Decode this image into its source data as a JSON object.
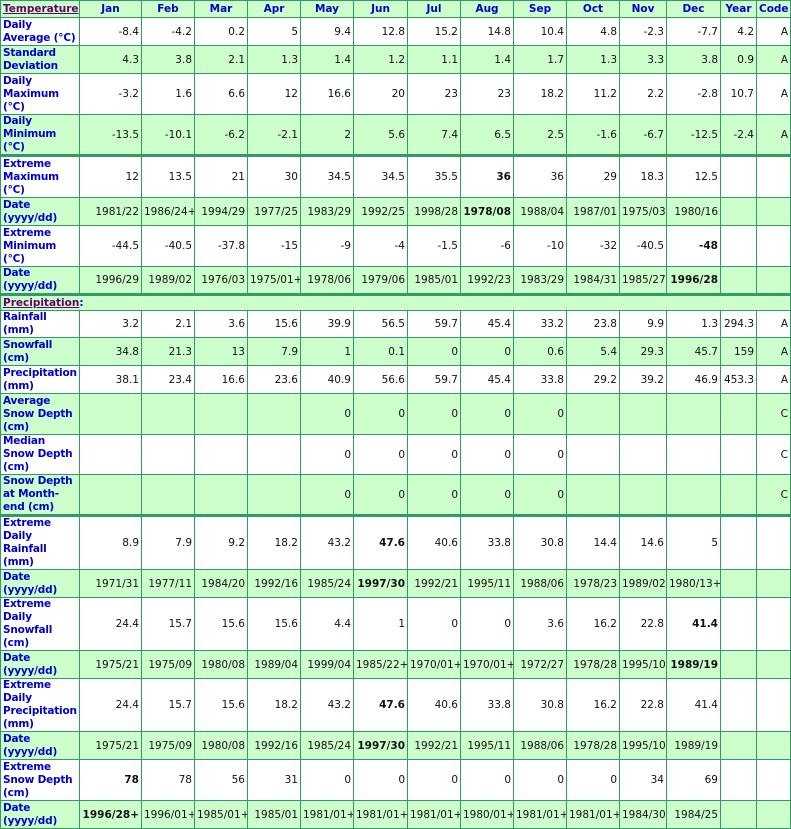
{
  "colors": {
    "green": "#ccffcc",
    "border": "#339966",
    "label": "#0000cc",
    "section": "#660066"
  },
  "header": {
    "section": "Temperature",
    "columns": [
      "Jan",
      "Feb",
      "Mar",
      "Apr",
      "May",
      "Jun",
      "Jul",
      "Aug",
      "Sep",
      "Oct",
      "Nov",
      "Dec",
      "Year",
      "Code"
    ]
  },
  "precip_section": "Precipitation",
  "temperature_rows": [
    {
      "label": "Daily Average (°C)",
      "values": [
        "-8.4",
        "-4.2",
        "0.2",
        "5",
        "9.4",
        "12.8",
        "15.2",
        "14.8",
        "10.4",
        "4.8",
        "-2.3",
        "-7.7",
        "4.2",
        "A"
      ],
      "bold": []
    },
    {
      "label": "Standard Deviation",
      "values": [
        "4.3",
        "3.8",
        "2.1",
        "1.3",
        "1.4",
        "1.2",
        "1.1",
        "1.4",
        "1.7",
        "1.3",
        "3.3",
        "3.8",
        "0.9",
        "A"
      ],
      "bold": []
    },
    {
      "label": "Daily Maximum (°C)",
      "values": [
        "-3.2",
        "1.6",
        "6.6",
        "12",
        "16.6",
        "20",
        "23",
        "23",
        "18.2",
        "11.2",
        "2.2",
        "-2.8",
        "10.7",
        "A"
      ],
      "bold": []
    },
    {
      "label": "Daily Minimum (°C)",
      "values": [
        "-13.5",
        "-10.1",
        "-6.2",
        "-2.1",
        "2",
        "5.6",
        "7.4",
        "6.5",
        "2.5",
        "-1.6",
        "-6.7",
        "-12.5",
        "-2.4",
        "A"
      ],
      "bold": []
    },
    {
      "label": "Extreme Maximum (°C)",
      "values": [
        "12",
        "13.5",
        "21",
        "30",
        "34.5",
        "34.5",
        "35.5",
        "36",
        "36",
        "29",
        "18.3",
        "12.5",
        "",
        ""
      ],
      "bold": [
        7
      ]
    },
    {
      "label": "Date (yyyy/dd)",
      "values": [
        "1981/22",
        "1986/24+",
        "1994/29",
        "1977/25",
        "1983/29",
        "1992/25",
        "1998/28",
        "1978/08",
        "1988/04",
        "1987/01",
        "1975/03",
        "1980/16",
        "",
        ""
      ],
      "bold": [
        7
      ]
    },
    {
      "label": "Extreme Minimum (°C)",
      "values": [
        "-44.5",
        "-40.5",
        "-37.8",
        "-15",
        "-9",
        "-4",
        "-1.5",
        "-6",
        "-10",
        "-32",
        "-40.5",
        "-48",
        "",
        ""
      ],
      "bold": [
        11
      ]
    },
    {
      "label": "Date (yyyy/dd)",
      "values": [
        "1996/29",
        "1989/02",
        "1976/03",
        "1975/01+",
        "1978/06",
        "1979/06",
        "1985/01",
        "1992/23",
        "1983/29",
        "1984/31",
        "1985/27",
        "1996/28",
        "",
        ""
      ],
      "bold": [
        11
      ]
    }
  ],
  "precipitation_rows": [
    {
      "label": "Rainfall (mm)",
      "values": [
        "3.2",
        "2.1",
        "3.6",
        "15.6",
        "39.9",
        "56.5",
        "59.7",
        "45.4",
        "33.2",
        "23.8",
        "9.9",
        "1.3",
        "294.3",
        "A"
      ],
      "bold": []
    },
    {
      "label": "Snowfall (cm)",
      "values": [
        "34.8",
        "21.3",
        "13",
        "7.9",
        "1",
        "0.1",
        "0",
        "0",
        "0.6",
        "5.4",
        "29.3",
        "45.7",
        "159",
        "A"
      ],
      "bold": []
    },
    {
      "label": "Precipitation (mm)",
      "values": [
        "38.1",
        "23.4",
        "16.6",
        "23.6",
        "40.9",
        "56.6",
        "59.7",
        "45.4",
        "33.8",
        "29.2",
        "39.2",
        "46.9",
        "453.3",
        "A"
      ],
      "bold": []
    },
    {
      "label": "Average Snow Depth (cm)",
      "values": [
        "",
        "",
        "",
        "",
        "0",
        "0",
        "0",
        "0",
        "0",
        "",
        "",
        "",
        "",
        "C"
      ],
      "bold": []
    },
    {
      "label": "Median Snow Depth (cm)",
      "values": [
        "",
        "",
        "",
        "",
        "0",
        "0",
        "0",
        "0",
        "0",
        "",
        "",
        "",
        "",
        "C"
      ],
      "bold": []
    },
    {
      "label": "Snow Depth at Month-end (cm)",
      "values": [
        "",
        "",
        "",
        "",
        "0",
        "0",
        "0",
        "0",
        "0",
        "",
        "",
        "",
        "",
        "C"
      ],
      "bold": []
    },
    {
      "label": "Extreme Daily Rainfall (mm)",
      "values": [
        "8.9",
        "7.9",
        "9.2",
        "18.2",
        "43.2",
        "47.6",
        "40.6",
        "33.8",
        "30.8",
        "14.4",
        "14.6",
        "5",
        "",
        ""
      ],
      "bold": [
        5
      ]
    },
    {
      "label": "Date (yyyy/dd)",
      "values": [
        "1971/31",
        "1977/11",
        "1984/20",
        "1992/16",
        "1985/24",
        "1997/30",
        "1992/21",
        "1995/11",
        "1988/06",
        "1978/23",
        "1989/02",
        "1980/13+",
        "",
        ""
      ],
      "bold": [
        5
      ]
    },
    {
      "label": "Extreme Daily Snowfall (cm)",
      "values": [
        "24.4",
        "15.7",
        "15.6",
        "15.6",
        "4.4",
        "1",
        "0",
        "0",
        "3.6",
        "16.2",
        "22.8",
        "41.4",
        "",
        ""
      ],
      "bold": [
        11
      ]
    },
    {
      "label": "Date (yyyy/dd)",
      "values": [
        "1975/21",
        "1975/09",
        "1980/08",
        "1989/04",
        "1999/04",
        "1985/22+",
        "1970/01+",
        "1970/01+",
        "1972/27",
        "1978/28",
        "1995/10",
        "1989/19",
        "",
        ""
      ],
      "bold": [
        11
      ]
    },
    {
      "label": "Extreme Daily Precipitation (mm)",
      "values": [
        "24.4",
        "15.7",
        "15.6",
        "18.2",
        "43.2",
        "47.6",
        "40.6",
        "33.8",
        "30.8",
        "16.2",
        "22.8",
        "41.4",
        "",
        ""
      ],
      "bold": [
        5
      ]
    },
    {
      "label": "Date (yyyy/dd)",
      "values": [
        "1975/21",
        "1975/09",
        "1980/08",
        "1992/16",
        "1985/24",
        "1997/30",
        "1992/21",
        "1995/11",
        "1988/06",
        "1978/28",
        "1995/10",
        "1989/19",
        "",
        ""
      ],
      "bold": [
        5
      ]
    },
    {
      "label": "Extreme Snow Depth (cm)",
      "values": [
        "78",
        "78",
        "56",
        "31",
        "0",
        "0",
        "0",
        "0",
        "0",
        "0",
        "34",
        "69",
        "",
        ""
      ],
      "bold": [
        0
      ]
    },
    {
      "label": "Date (yyyy/dd)",
      "values": [
        "1996/28+",
        "1996/01+",
        "1985/01+",
        "1985/01",
        "1981/01+",
        "1981/01+",
        "1981/01+",
        "1980/01+",
        "1981/01+",
        "1981/01+",
        "1984/30",
        "1984/25",
        "",
        ""
      ],
      "bold": [
        0
      ]
    }
  ]
}
